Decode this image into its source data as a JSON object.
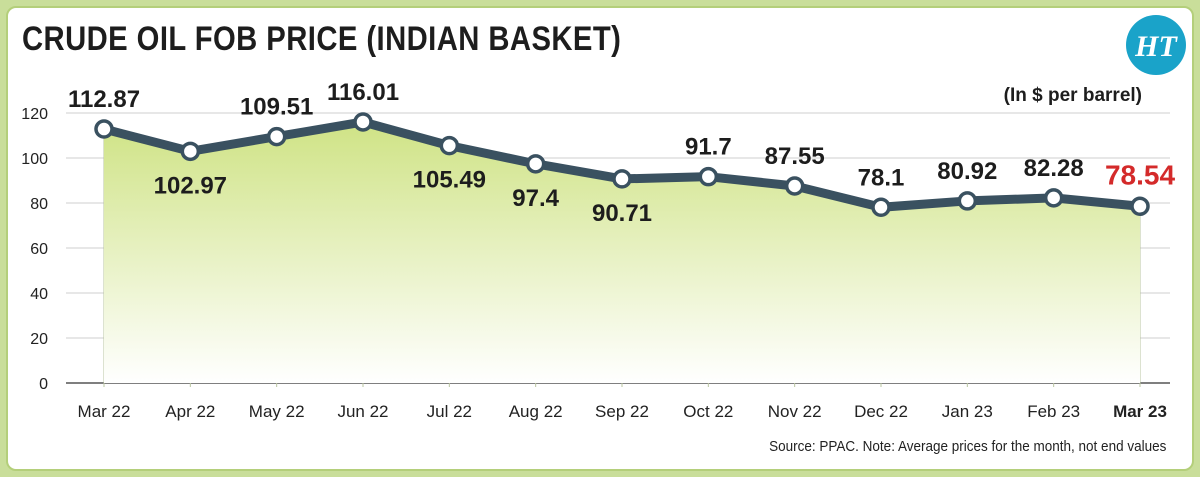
{
  "title": "CRUDE OIL FOB PRICE (INDIAN BASKET)",
  "logo_text": "HT",
  "unit_label": "(In $ per barrel)",
  "source": "Source: PPAC. Note: Average prices for the month, not end values",
  "colors": {
    "line": "#3a5160",
    "fill_top": "#d3e68f",
    "fill_bottom": "#ffffff",
    "highlight": "#d42a2a",
    "logo": "#1aa3c9",
    "grid": "#cfcfcf"
  },
  "chart_data": {
    "type": "area",
    "title": "CRUDE OIL FOB PRICE (INDIAN BASKET)",
    "xlabel": "",
    "ylabel": "(In $ per barrel)",
    "ylim": [
      0,
      120
    ],
    "yticks": [
      0,
      20,
      40,
      60,
      80,
      100,
      120
    ],
    "grid": true,
    "categories": [
      "Mar 22",
      "Apr 22",
      "May 22",
      "Jun 22",
      "Jul 22",
      "Aug 22",
      "Sep 22",
      "Oct 22",
      "Nov 22",
      "Dec 22",
      "Jan 23",
      "Feb 23",
      "Mar 23"
    ],
    "values": [
      112.87,
      102.97,
      109.51,
      116.01,
      105.49,
      97.4,
      90.71,
      91.7,
      87.55,
      78.1,
      80.92,
      82.28,
      78.54
    ],
    "value_labels": [
      "112.87",
      "102.97",
      "109.51",
      "116.01",
      "105.49",
      "97.4",
      "90.71",
      "91.7",
      "87.55",
      "78.1",
      "80.92",
      "82.28",
      "78.54"
    ],
    "highlight_index": 12
  }
}
